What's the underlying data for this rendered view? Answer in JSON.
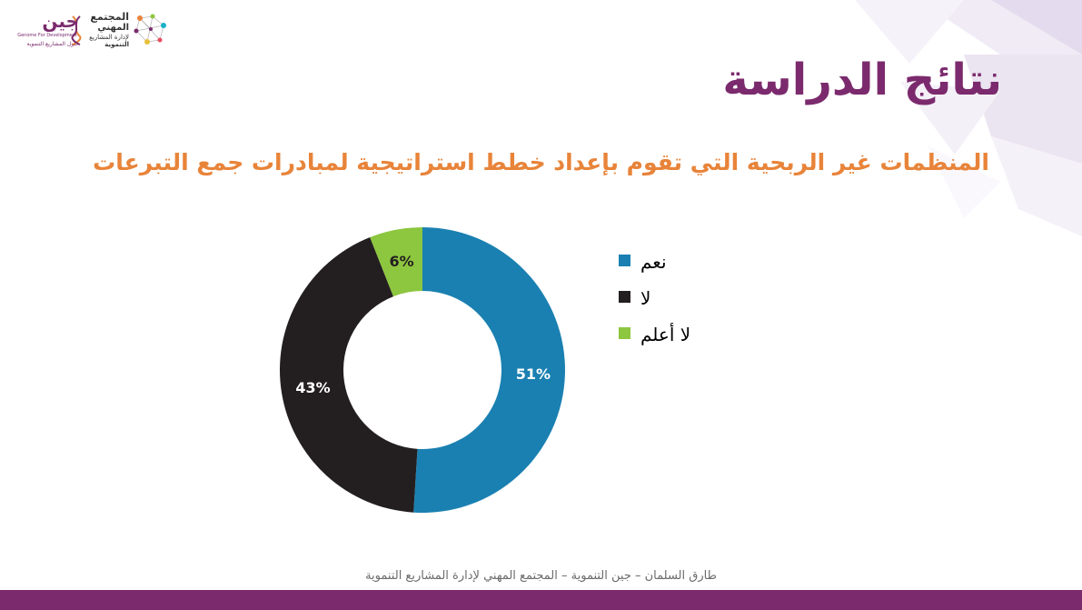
{
  "logos": {
    "genome": {
      "brand": "جين",
      "line1": "Genome For Development",
      "line2": "حلول المشاريع التنموية"
    },
    "pmc": {
      "line1": "المجتمع",
      "line2": "المهني",
      "line3": "لإدارة المشاريع",
      "line4": "التنموية"
    }
  },
  "colors": {
    "brand_purple": "#7b2a6d",
    "accent_orange": "#e8843a",
    "footer_bar": "#7b2a6d"
  },
  "slide": {
    "title": "نتائج الدراسة",
    "footer": "طارق السلمان – جين التنموية – المجتمع المهني لإدارة المشاريع التنموية"
  },
  "chart_data": {
    "type": "pie",
    "donut": true,
    "title": "المنظمات غير الربحية التي تقوم بإعداد خطط استراتيجية لمبادرات جمع التبرعات",
    "categories": [
      "نعم",
      "لا",
      "لا أعلم"
    ],
    "values": [
      51,
      43,
      6
    ],
    "labels": [
      "51%",
      "43%",
      "6%"
    ],
    "colors": [
      "#1a80b1",
      "#231f20",
      "#8dc63f"
    ],
    "legend_position": "right"
  }
}
